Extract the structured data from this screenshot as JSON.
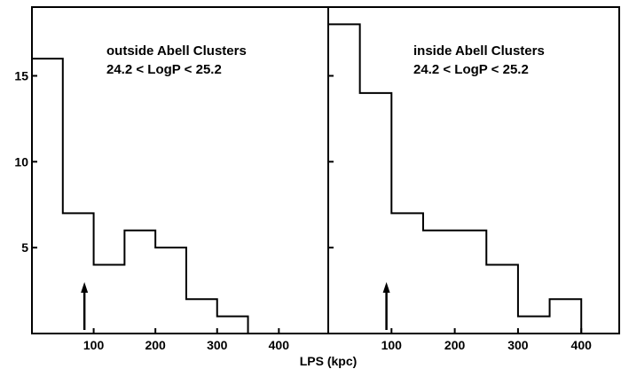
{
  "chart_data": [
    {
      "type": "histogram",
      "annotation": [
        "outside Abell Clusters",
        "24.2 < LogP < 25.2"
      ],
      "bin_edges": [
        0,
        50,
        100,
        150,
        200,
        250,
        300,
        350
      ],
      "counts": [
        16,
        7,
        4,
        6,
        5,
        2,
        1
      ],
      "marker_x": 85,
      "xlim": [
        0,
        480
      ],
      "ylim": [
        0,
        19
      ],
      "x_ticks": [
        100,
        200,
        300,
        400
      ],
      "y_ticks": [
        5,
        10,
        15
      ],
      "y_tick_labels": [
        "5",
        "10",
        "15"
      ]
    },
    {
      "type": "histogram",
      "annotation": [
        "inside Abell Clusters",
        "24.2 < LogP < 25.2"
      ],
      "bin_edges": [
        0,
        50,
        100,
        150,
        200,
        250,
        300,
        350,
        400
      ],
      "counts": [
        18,
        14,
        7,
        6,
        6,
        4,
        1,
        2
      ],
      "marker_x": 92,
      "xlim": [
        0,
        460
      ],
      "ylim": [
        0,
        19
      ],
      "x_ticks": [
        100,
        200,
        300,
        400
      ],
      "y_ticks": [
        5,
        10,
        15
      ],
      "y_tick_labels": []
    }
  ],
  "x_tick_labels": [
    "100",
    "200",
    "300",
    "400"
  ],
  "xlabel": "LPS (kpc)"
}
